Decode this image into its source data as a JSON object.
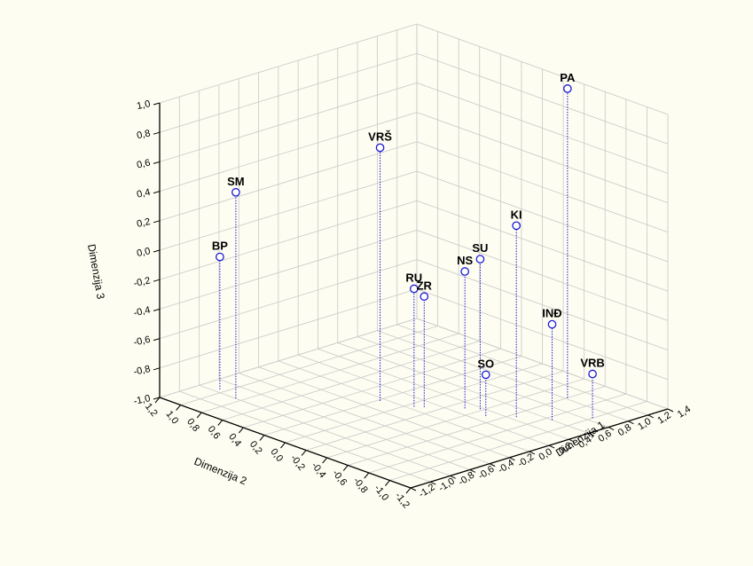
{
  "chart_data": {
    "type": "scatter",
    "projection": "3d",
    "title": "",
    "axes": {
      "x": {
        "label": "Dimenzija 1",
        "ticks": [
          "1,4",
          "1,2",
          "1,0",
          "0,8",
          "0,6",
          "0,4",
          "0,2",
          "0,0",
          "-0,2",
          "-0,4",
          "-0,6",
          "-0,8",
          "-1,0",
          "-1,2"
        ],
        "range": [
          -1.2,
          1.4
        ]
      },
      "y": {
        "label": "Dimenzija 2",
        "ticks": [
          "1,2",
          "1,0",
          "0,8",
          "0,6",
          "0,4",
          "0,2",
          "0,0",
          "-0,2",
          "-0,4",
          "-0,6",
          "-0,8",
          "-1,0",
          "-1,2"
        ],
        "range": [
          -1.2,
          1.2
        ]
      },
      "z": {
        "label": "Dimenzija 3",
        "ticks": [
          "1,0",
          "0,8",
          "0,6",
          "0,4",
          "0,2",
          "0,0",
          "-0,2",
          "-0,4",
          "-0,6",
          "-0,8",
          "-1,0"
        ],
        "range": [
          -1.0,
          1.0
        ]
      }
    },
    "grid": true,
    "colors": {
      "point_stroke": "#1a1ad6",
      "drop_line": "#1a1ad6",
      "grid": "#c8c8c8",
      "background": "#fefdf1"
    },
    "points": [
      {
        "label": "PA",
        "x": 1.02,
        "y": -0.6,
        "z": 1.1
      },
      {
        "label": "VRŠ",
        "x": -0.05,
        "y": 0.18,
        "z": 0.72
      },
      {
        "label": "SM",
        "x": -0.8,
        "y": 0.85,
        "z": 0.4
      },
      {
        "label": "KI",
        "x": 0.45,
        "y": -0.65,
        "z": 0.3
      },
      {
        "label": "SU",
        "x": 0.37,
        "y": -0.38,
        "z": 0.02
      },
      {
        "label": "NS",
        "x": 0.3,
        "y": -0.3,
        "z": -0.07
      },
      {
        "label": "BP",
        "x": -0.75,
        "y": 1.05,
        "z": -0.1
      },
      {
        "label": "RU",
        "x": 0.05,
        "y": -0.05,
        "z": -0.2
      },
      {
        "label": "ZR",
        "x": 0.1,
        "y": -0.1,
        "z": -0.25
      },
      {
        "label": "INĐ",
        "x": 0.6,
        "y": -0.85,
        "z": -0.35
      },
      {
        "label": "SO",
        "x": 0.3,
        "y": -0.5,
        "z": -0.72
      },
      {
        "label": "VRB",
        "x": 0.85,
        "y": -1.0,
        "z": -0.7
      }
    ]
  }
}
